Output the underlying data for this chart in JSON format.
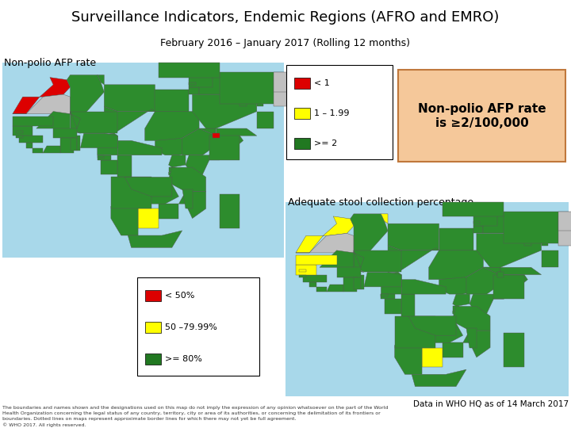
{
  "title": "Surveillance Indicators, Endemic Regions (AFRO and EMRO)",
  "subtitle": "February 2016 – January 2017 (Rolling 12 months)",
  "title_bg": "#b8cce4",
  "slide_bg": "#ffffff",
  "section1_label": "Non-polio AFP rate",
  "section2_label": "Adequate stool collection percentage",
  "legend1": [
    {
      "color": "#dd0000",
      "label": "< 1"
    },
    {
      "color": "#ffff00",
      "label": "1 – 1.99"
    },
    {
      "color": "#217821",
      "label": ">= 2"
    }
  ],
  "legend2": [
    {
      "color": "#dd0000",
      "label": "< 50%"
    },
    {
      "color": "#ffff00",
      "label": "50 –79.99%"
    },
    {
      "color": "#217821",
      "label": ">= 80%"
    }
  ],
  "callout_text": "Non-polio AFP rate\nis ≥2/100,000",
  "callout_bg": "#f5c89a",
  "callout_border": "#c0783c",
  "data_note": "Data in WHO HQ as of 14 March 2017",
  "disclaimer": "The boundaries and names shown and the designations used on this map do not imply the expression of any opinion whatsoever on the part of the World\nHealth Organization concerning the legal status of any country, territory, city or area of its authorities, or concerning the delimitation of its frontiers or\nboundaries. Dotted lines on maps represent approximate border lines for which there may not yet be full agreement.\n© WHO 2017. All rights reserved.",
  "map_water": "#a8d8ea",
  "map_land_green": "#2d8c2d",
  "map_land_gray": "#c0c0c0",
  "map_land_red": "#dd0000",
  "map_land_yellow": "#ffff00",
  "map_border": "#555555"
}
